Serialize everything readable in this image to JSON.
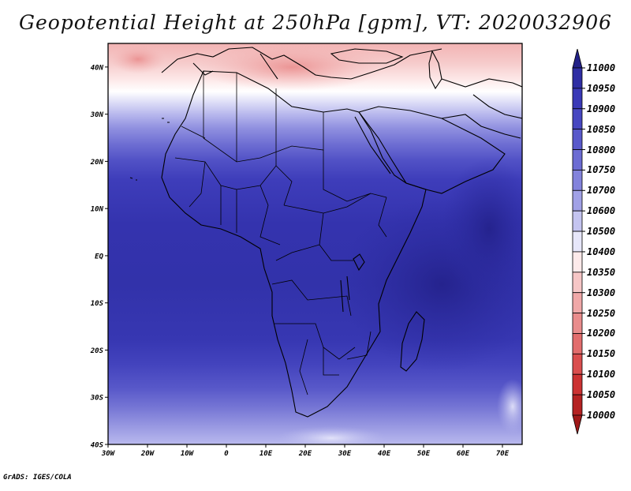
{
  "title": "Geopotential Height at 250hPa [gpm], VT: 2020032906",
  "credit": "GrADS: IGES/COLA",
  "map": {
    "lat_labels": [
      "40N",
      "30N",
      "20N",
      "10N",
      "EQ",
      "10S",
      "20S",
      "30S",
      "40S"
    ],
    "lon_labels": [
      "30W",
      "20W",
      "10W",
      "0",
      "10E",
      "20E",
      "30E",
      "40E",
      "50E",
      "60E",
      "70E"
    ],
    "lat_range": [
      -40,
      45
    ],
    "lon_range": [
      -30,
      75
    ]
  },
  "colorbar": {
    "levels": [
      "11000",
      "10950",
      "10900",
      "10850",
      "10800",
      "10750",
      "10700",
      "10600",
      "10500",
      "10400",
      "10350",
      "10300",
      "10250",
      "10200",
      "10150",
      "10100",
      "10050",
      "10000"
    ],
    "colors": [
      "#232188",
      "#2f2ea4",
      "#3a39b7",
      "#4747c1",
      "#5959cb",
      "#6c6cd3",
      "#8383dc",
      "#a1a1e6",
      "#c4c4f0",
      "#e7e7fa",
      "#fdeaea",
      "#f6c6c6",
      "#f0a8a8",
      "#e98c8c",
      "#e26d6d",
      "#da4e4e",
      "#cc3232",
      "#b52222",
      "#a01919"
    ]
  }
}
